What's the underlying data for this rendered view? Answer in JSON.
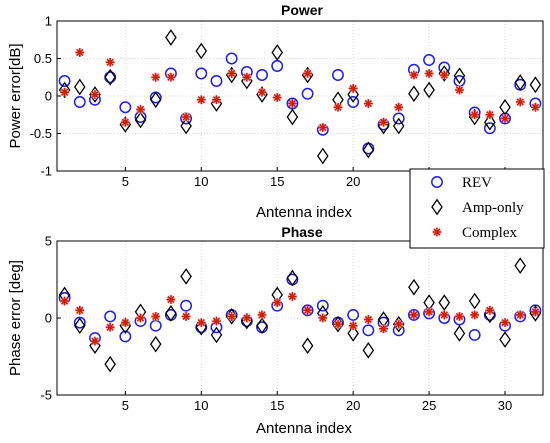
{
  "chart_data": [
    {
      "type": "scatter",
      "title": "Power",
      "xlabel": "Antenna index",
      "ylabel": "Power error[dB]",
      "xlim": [
        0.5,
        32.5
      ],
      "ylim": [
        -1,
        1
      ],
      "xticks": [
        5,
        10,
        15,
        20,
        25,
        30
      ],
      "yticks": [
        -1,
        -0.5,
        0,
        0.5,
        1
      ],
      "grid": true,
      "legend_position": "bottom-right",
      "x": [
        1,
        2,
        3,
        4,
        5,
        6,
        7,
        8,
        9,
        10,
        11,
        12,
        13,
        14,
        15,
        16,
        17,
        18,
        19,
        20,
        21,
        22,
        23,
        24,
        25,
        26,
        27,
        28,
        29,
        30,
        31,
        32
      ],
      "series": [
        {
          "name": "REV",
          "marker": "circle",
          "color": "#1f1fe6",
          "values": [
            0.2,
            -0.08,
            -0.05,
            0.25,
            -0.15,
            -0.28,
            -0.02,
            0.3,
            -0.3,
            0.3,
            0.2,
            0.5,
            0.32,
            0.28,
            0.4,
            -0.1,
            0.03,
            -0.45,
            0.28,
            -0.08,
            -0.7,
            -0.38,
            -0.3,
            0.35,
            0.48,
            0.38,
            0.2,
            -0.22,
            -0.43,
            -0.3,
            0.15,
            -0.1
          ]
        },
        {
          "name": "Amp-only",
          "marker": "diamond",
          "color": "#000000",
          "values": [
            0.08,
            0.12,
            0.02,
            0.25,
            -0.38,
            -0.32,
            -0.05,
            0.78,
            -0.4,
            0.6,
            -0.1,
            0.28,
            0.2,
            0.02,
            0.58,
            -0.28,
            0.28,
            -0.8,
            -0.05,
            0.02,
            -0.72,
            -0.4,
            -0.4,
            0.03,
            0.08,
            0.3,
            0.27,
            -0.28,
            -0.35,
            -0.15,
            0.18,
            0.15
          ]
        },
        {
          "name": "Complex",
          "marker": "star",
          "color": "#cc2200",
          "values": [
            0.05,
            0.58,
            0.02,
            0.45,
            -0.35,
            -0.18,
            0.25,
            0.25,
            -0.28,
            -0.05,
            -0.05,
            0.3,
            0.25,
            0.05,
            -0.02,
            -0.1,
            0.3,
            -0.42,
            -0.15,
            0.1,
            -0.1,
            -0.35,
            -0.15,
            0.28,
            0.3,
            0.28,
            0.08,
            -0.25,
            -0.25,
            -0.3,
            -0.08,
            -0.15
          ]
        }
      ]
    },
    {
      "type": "scatter",
      "title": "Phase",
      "xlabel": "Antenna index",
      "ylabel": "Phase error [deg]",
      "xlim": [
        0.5,
        32.5
      ],
      "ylim": [
        -5,
        5
      ],
      "xticks": [
        5,
        10,
        15,
        20,
        25,
        30
      ],
      "yticks": [
        -5,
        0,
        5
      ],
      "grid": true,
      "x": [
        1,
        2,
        3,
        4,
        5,
        6,
        7,
        8,
        9,
        10,
        11,
        12,
        13,
        14,
        15,
        16,
        17,
        18,
        19,
        20,
        21,
        22,
        23,
        24,
        25,
        26,
        27,
        28,
        29,
        30,
        31,
        32
      ],
      "series": [
        {
          "name": "REV",
          "marker": "circle",
          "color": "#1f1fe6",
          "values": [
            1.3,
            -0.3,
            -1.3,
            0.1,
            -1.2,
            -0.2,
            -0.5,
            0.2,
            0.8,
            -0.6,
            -0.6,
            0.2,
            -0.2,
            -0.6,
            0.8,
            2.5,
            0.5,
            0.8,
            -0.3,
            0.2,
            -0.8,
            -0.3,
            -0.8,
            0.2,
            0.3,
            0.0,
            -0.1,
            -1.1,
            0.2,
            -0.5,
            0.1,
            0.5
          ]
        },
        {
          "name": "Amp-only",
          "marker": "diamond",
          "color": "#000000",
          "values": [
            1.5,
            -0.5,
            -1.8,
            -3.0,
            -0.5,
            0.4,
            -1.7,
            0.3,
            2.7,
            -0.6,
            -1.1,
            0.1,
            -0.2,
            -0.5,
            1.5,
            2.6,
            -1.8,
            0.3,
            -0.4,
            -1.0,
            -2.1,
            -0.1,
            -0.4,
            2.0,
            1.0,
            1.0,
            -1.0,
            1.1,
            0.2,
            -1.4,
            3.4,
            0.3
          ]
        },
        {
          "name": "Complex",
          "marker": "star",
          "color": "#cc2200",
          "values": [
            1.1,
            0.5,
            -1.5,
            -0.6,
            -0.3,
            0.0,
            0.1,
            1.2,
            0.1,
            -0.3,
            -0.2,
            0.1,
            0.0,
            0.2,
            1.0,
            1.4,
            0.5,
            0.0,
            -0.4,
            -0.5,
            -0.1,
            -0.7,
            -0.4,
            0.2,
            0.4,
            0.2,
            0.1,
            0.2,
            0.5,
            -0.3,
            0.2,
            0.4
          ]
        }
      ]
    }
  ]
}
